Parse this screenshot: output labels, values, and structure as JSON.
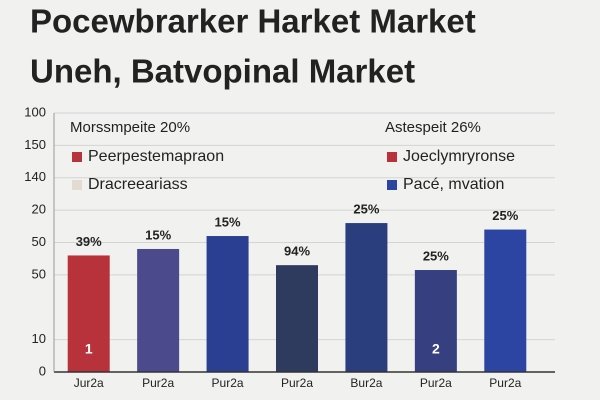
{
  "chart_data": {
    "type": "bar",
    "title": [
      "Pocewbrarker Harket Market",
      "Uneh, Batvopinal Market"
    ],
    "categories": [
      "Jur2a",
      "Pur2a",
      "Pur2a",
      "Pur2a",
      "Bur2a",
      "Pur2a",
      "Pur2a"
    ],
    "values": [
      36,
      38,
      42,
      33,
      46,
      31.5,
      44
    ],
    "colors": [
      "#b8323c",
      "#4b4a8c",
      "#2b3f92",
      "#2f3b5e",
      "#2a3d7c",
      "#363f80",
      "#2c45a2"
    ],
    "bar_labels": [
      "39%",
      "15%",
      "15%",
      "94%",
      "25%",
      "25%",
      "25%"
    ],
    "inner_labels": [
      {
        "bar": 0,
        "text": "1"
      },
      {
        "bar": 5,
        "text": "2"
      }
    ],
    "ylim": [
      0,
      80
    ],
    "yticks": [
      0,
      10,
      {
        "value": 30,
        "label": "50"
      },
      {
        "value": 40,
        "label": "50"
      },
      {
        "value": 50,
        "label": "20"
      },
      {
        "value": 60,
        "label": "140"
      },
      {
        "value": 70,
        "label": "150"
      },
      {
        "value": 80,
        "label": "100"
      }
    ],
    "grid": true,
    "legend": [
      {
        "title": "Morssmpeite 20%",
        "items": [
          {
            "name": "Peerpestemapraon",
            "color": "#b8323c"
          },
          {
            "name": "Dracreeariass",
            "color": "#e2dbcf"
          }
        ]
      },
      {
        "title": "Astespeit 26%",
        "items": [
          {
            "name": "Joeclymryronse",
            "color": "#b8323c"
          },
          {
            "name": "Pacé, mvation",
            "color": "#2c45a2"
          }
        ]
      }
    ]
  }
}
